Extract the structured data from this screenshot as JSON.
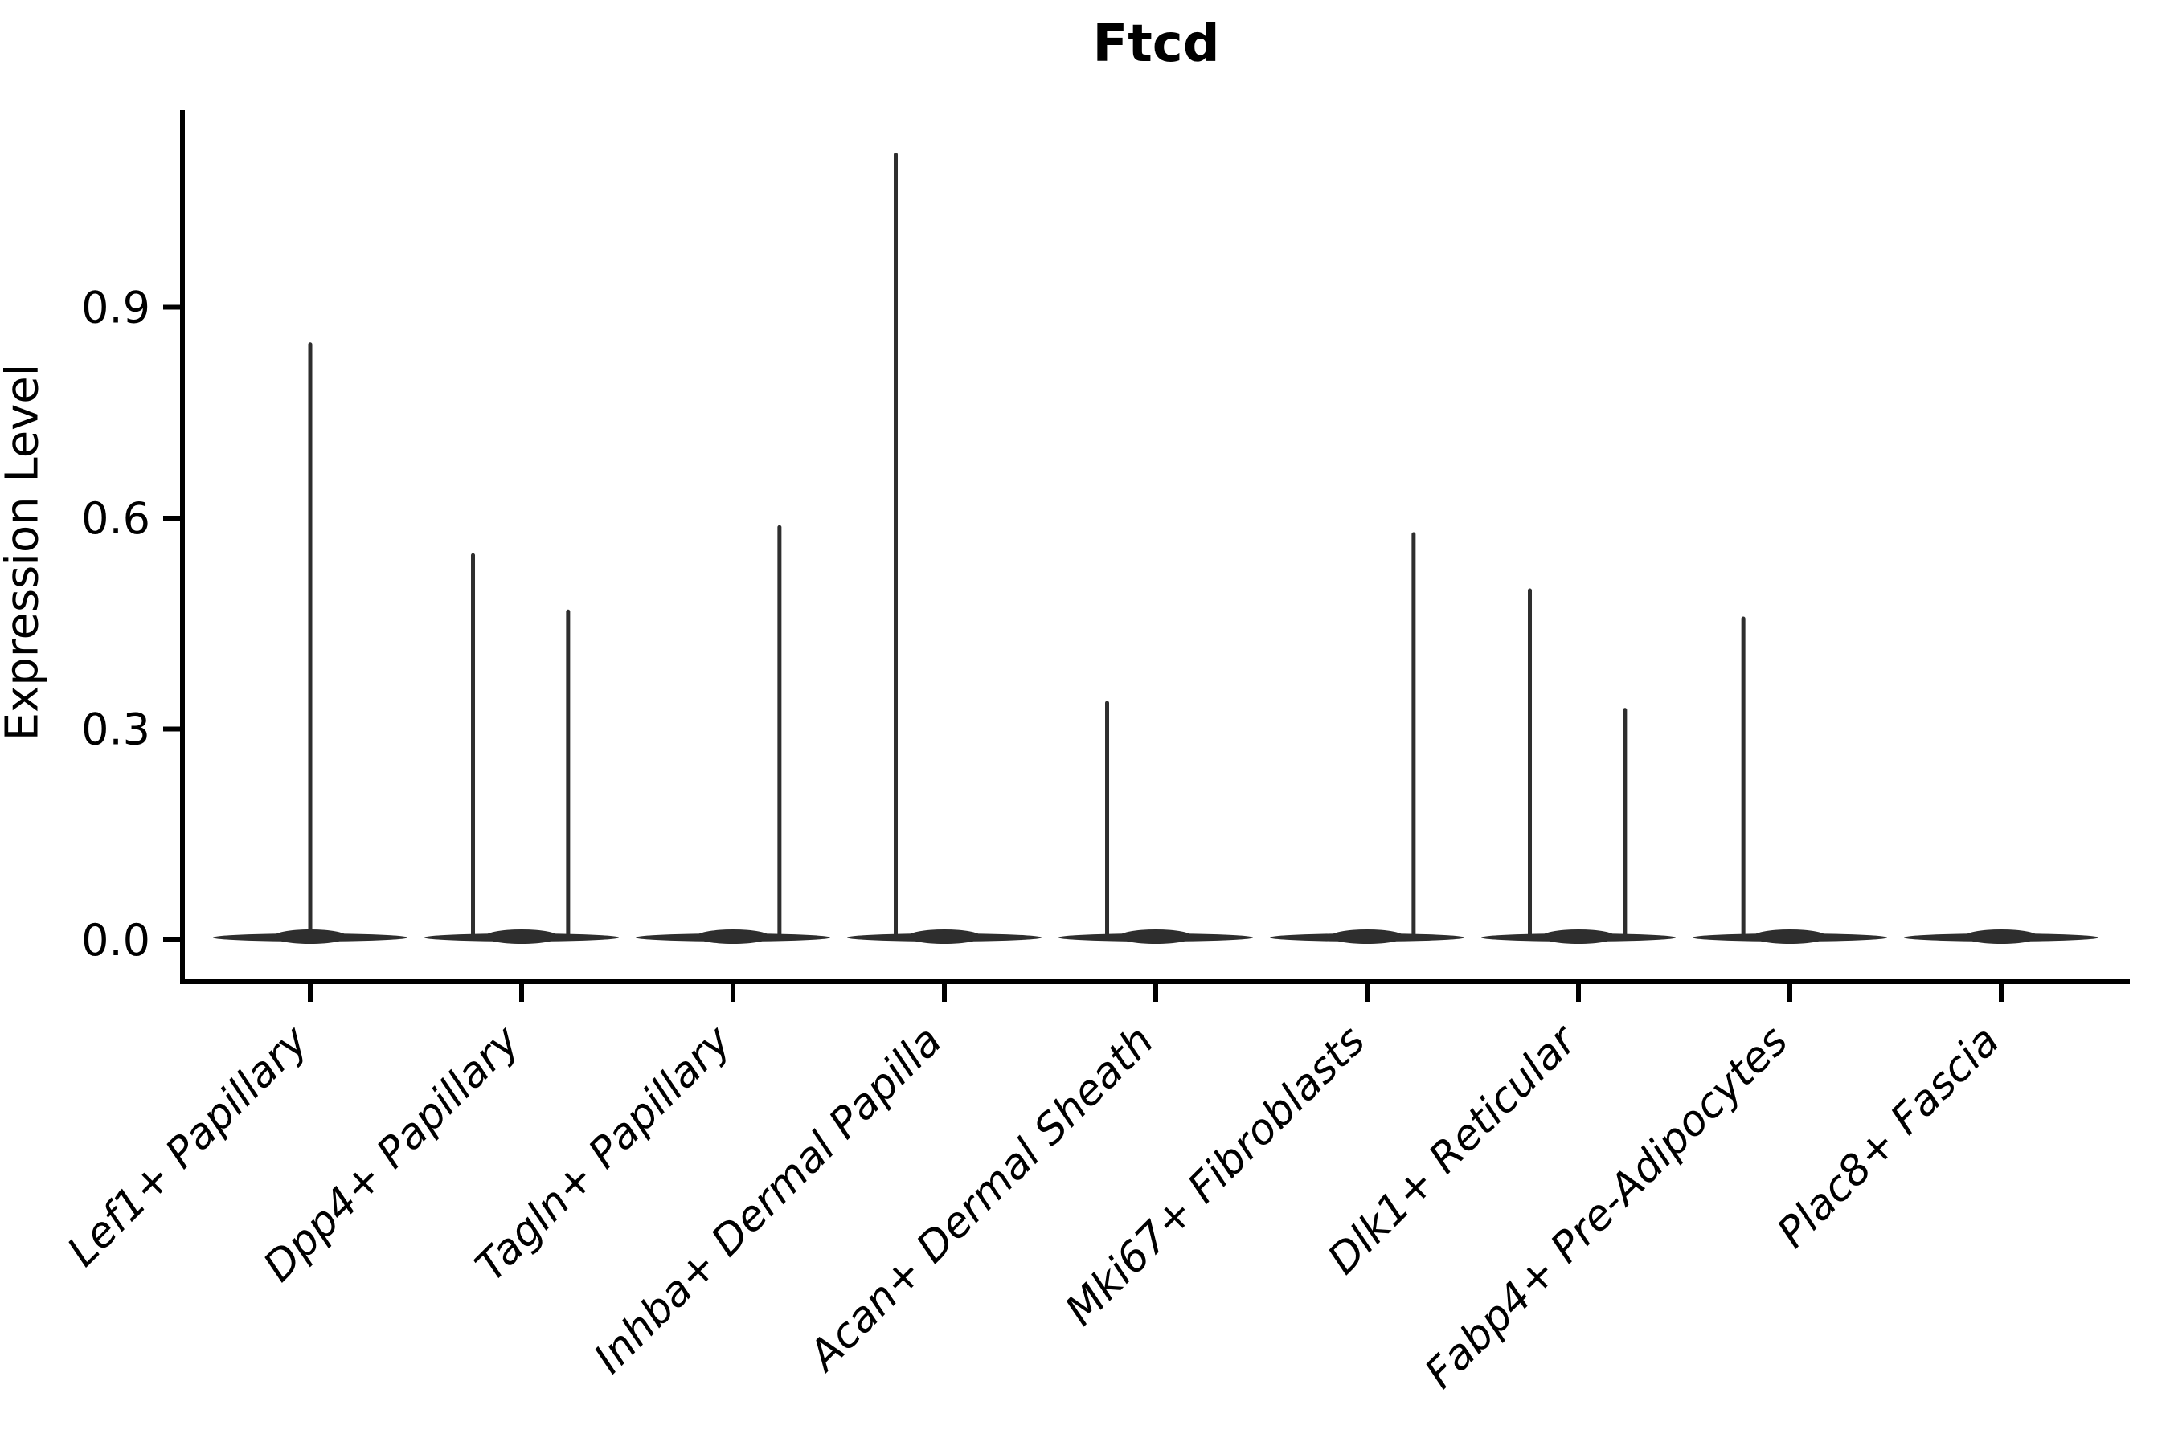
{
  "title": "Ftcd",
  "style": {
    "background": "#ffffff",
    "violin_color": "#2e2e2e",
    "axis_color": "#000000",
    "text_color": "#000000"
  },
  "chart_data": {
    "type": "violin",
    "title": "Ftcd",
    "xlabel": "",
    "ylabel": "Expression Level",
    "yticks": [
      "0.0",
      "0.3",
      "0.6",
      "0.9"
    ],
    "ytick_values": [
      0.0,
      0.3,
      0.6,
      0.9
    ],
    "ylim": [
      -0.06,
      1.18
    ],
    "grid": false,
    "legend": false,
    "categories": [
      "Lef1+ Papillary",
      "Dpp4+ Papillary",
      "Tagln+ Papillary",
      "Inhba+ Dermal Papilla",
      "Acan+ Dermal Sheath",
      "Mki67+ Fibroblasts",
      "Dlk1+ Reticular",
      "Fabp4+ Pre-Adipocytes",
      "Plac8+ Fascia"
    ],
    "series": [
      {
        "category": "Lef1+ Papillary",
        "zero_body": true,
        "body_halfwidth_frac": 0.46,
        "spikes": [
          {
            "offset_frac": 0.0,
            "value": 0.85
          }
        ]
      },
      {
        "category": "Dpp4+ Papillary",
        "zero_body": true,
        "body_halfwidth_frac": 0.46,
        "spikes": [
          {
            "offset_frac": -0.23,
            "value": 0.55
          },
          {
            "offset_frac": 0.22,
            "value": 0.47
          }
        ]
      },
      {
        "category": "Tagln+ Papillary",
        "zero_body": true,
        "body_halfwidth_frac": 0.46,
        "spikes": [
          {
            "offset_frac": 0.22,
            "value": 0.59
          }
        ]
      },
      {
        "category": "Inhba+ Dermal Papilla",
        "zero_body": true,
        "body_halfwidth_frac": 0.46,
        "spikes": [
          {
            "offset_frac": -0.23,
            "value": 1.12
          }
        ]
      },
      {
        "category": "Acan+ Dermal Sheath",
        "zero_body": true,
        "body_halfwidth_frac": 0.46,
        "spikes": [
          {
            "offset_frac": -0.23,
            "value": 0.34
          }
        ]
      },
      {
        "category": "Mki67+ Fibroblasts",
        "zero_body": true,
        "body_halfwidth_frac": 0.46,
        "spikes": [
          {
            "offset_frac": 0.22,
            "value": 0.58
          }
        ]
      },
      {
        "category": "Dlk1+ Reticular",
        "zero_body": true,
        "body_halfwidth_frac": 0.46,
        "spikes": [
          {
            "offset_frac": -0.23,
            "value": 0.5
          },
          {
            "offset_frac": 0.22,
            "value": 0.33
          }
        ]
      },
      {
        "category": "Fabp4+ Pre-Adipocytes",
        "zero_body": true,
        "body_halfwidth_frac": 0.46,
        "spikes": [
          {
            "offset_frac": -0.22,
            "value": 0.46
          }
        ]
      },
      {
        "category": "Plac8+ Fascia",
        "zero_body": true,
        "body_halfwidth_frac": 0.46,
        "spikes": []
      }
    ]
  }
}
